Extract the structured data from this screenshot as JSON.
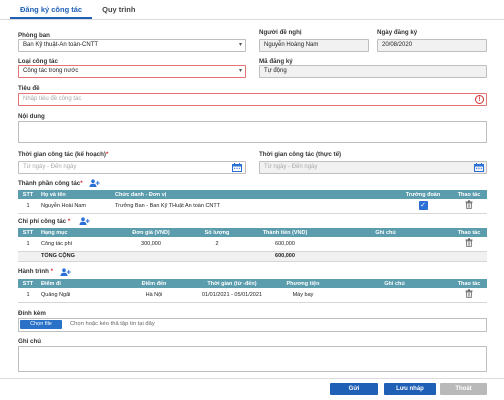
{
  "tabs": [
    {
      "label": "Đăng ký công tác",
      "active": true
    },
    {
      "label": "Quy trình",
      "active": false
    }
  ],
  "form": {
    "department": {
      "label": "Phòng ban",
      "value": "Ban Kỹ thuật-An toàn-CNTT"
    },
    "proposer": {
      "label": "Người đề nghị",
      "value": "Nguyễn Hoàng Nam"
    },
    "reg_date": {
      "label": "Ngày đăng ký",
      "value": "20/08/2020"
    },
    "trip_type": {
      "label": "Loại công tác",
      "value": "Công tác trong nước"
    },
    "reg_code": {
      "label": "Mã đăng ký",
      "value": "Tự động"
    },
    "title": {
      "label": "Tiêu đề",
      "placeholder": "Nhập tiêu đề công tác"
    },
    "content": {
      "label": "Nội dung"
    },
    "planned_time": {
      "label": "Thời gian công tác (kế hoạch)",
      "required_mark": "*",
      "placeholder": "Từ ngày - Đến ngày"
    },
    "actual_time": {
      "label": "Thời gian công tác (thực tế)",
      "placeholder": "Từ ngày - Đến ngày"
    },
    "notes": {
      "label": "Ghi chú"
    }
  },
  "members": {
    "label": "Thành phần công tác",
    "required_mark": "*",
    "columns": [
      "STT",
      "Họ và tên",
      "Chức danh - Đơn vị",
      "Trưởng đoàn",
      "Thao tác"
    ],
    "rows": [
      {
        "stt": "1",
        "name": "Nguyễn Hoài Nam",
        "title": "Trưởng Ban - Ban Kỹ THuật An toàn CNTT",
        "leader": true
      }
    ]
  },
  "expenses": {
    "label": "Chi phí công tác",
    "required_mark": "*",
    "columns": [
      "STT",
      "Hạng mục",
      "Đơn giá (VND)",
      "Số lượng",
      "Thành tiền (VND)",
      "Ghi chú",
      "Thao tác"
    ],
    "rows": [
      {
        "stt": "1",
        "item": "Công tác phí",
        "price": "300,000",
        "qty": "2",
        "amount": "600,000",
        "note": ""
      }
    ],
    "total_label": "TỔNG CỘNG",
    "total_value": "600,000"
  },
  "itinerary": {
    "label": "Hành trình",
    "required_mark": "*",
    "columns": [
      "STT",
      "Điểm đi",
      "Điểm đến",
      "Thời gian (từ -đến)",
      "Phương tiện",
      "Ghi chú",
      "Thao tác"
    ],
    "rows": [
      {
        "stt": "1",
        "from": "Quảng Ngãi",
        "to": "Hà Nội",
        "time": "01/01/2021 - 05/01/2021",
        "vehicle": "Máy bay",
        "note": ""
      }
    ]
  },
  "attachment": {
    "label": "Đính kèm",
    "choose_label": "Chọn file",
    "hint": "Chọn hoặc kéo thả tập tin tại đây"
  },
  "buttons": {
    "send": "Gửi",
    "draft": "Lưu nháp",
    "exit": "Thoát"
  },
  "colors": {
    "primary": "#1f5fb5",
    "table_header": "#5b9cad",
    "error": "#d32f2f",
    "disabled": "#b9b9b9"
  },
  "icons": {
    "calendar": "calendar-icon",
    "add_user": "add-user-icon",
    "trash": "trash-icon",
    "error": "error-icon",
    "dropdown": "chevron-down-icon"
  }
}
